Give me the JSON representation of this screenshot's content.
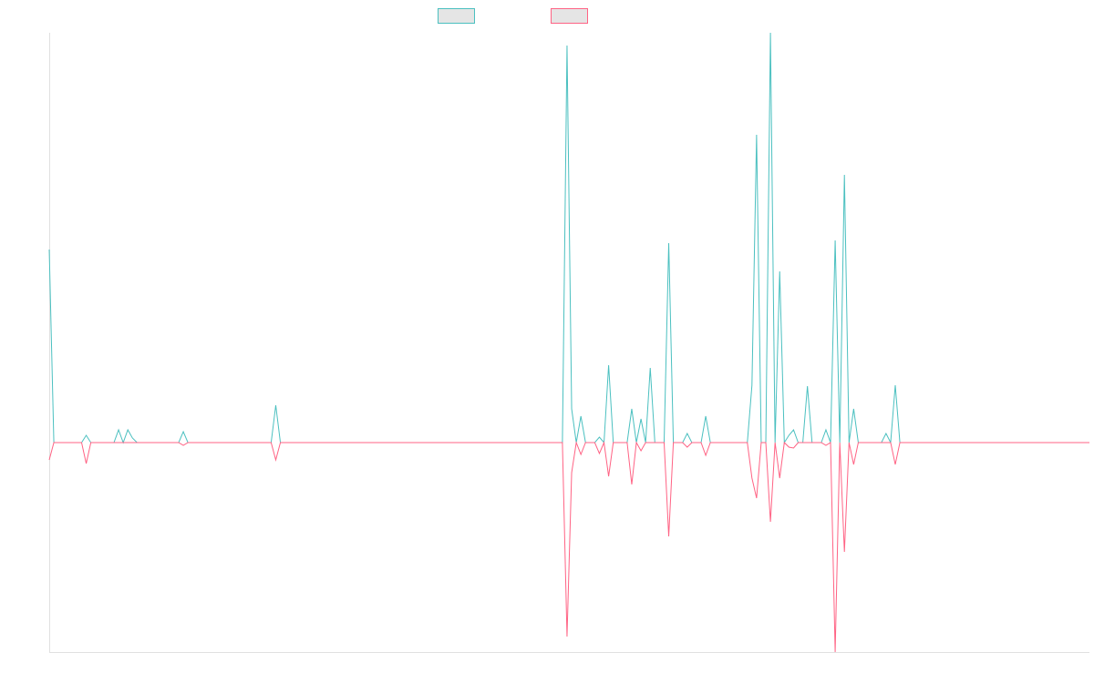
{
  "chart_data": {
    "type": "line",
    "title": "",
    "xlabel": "",
    "ylabel": "",
    "point_count": 226,
    "ylim": [
      -230,
      450
    ],
    "grid": false,
    "legend_placement": "top-center",
    "x": [
      0,
      8,
      15,
      17,
      18,
      29,
      49,
      112,
      113,
      115,
      119,
      121,
      126,
      128,
      130,
      134,
      138,
      142,
      152,
      153,
      156,
      158,
      160,
      161,
      164,
      168,
      170,
      172,
      174,
      181,
      183
    ],
    "series": [
      {
        "name": "",
        "color": "#4bc0c0",
        "values": [
          212,
          8,
          14,
          14,
          5,
          12,
          41,
          436,
          37,
          29,
          6,
          85,
          37,
          26,
          82,
          219,
          10,
          29,
          63,
          338,
          450,
          188,
          8,
          14,
          62,
          14,
          222,
          294,
          37,
          10,
          63
        ]
      },
      {
        "name": "",
        "color": "#ff6384",
        "values": [
          -19,
          -23,
          0,
          0,
          0,
          -3,
          -19,
          -213,
          -33,
          -13,
          -12,
          -37,
          -46,
          -9,
          0,
          -103,
          -5,
          -14,
          -39,
          -61,
          -87,
          -39,
          -5,
          -6,
          0,
          -3,
          -230,
          -120,
          -24,
          0,
          -24
        ]
      }
    ],
    "legend_fill": "#e5e5e5"
  }
}
